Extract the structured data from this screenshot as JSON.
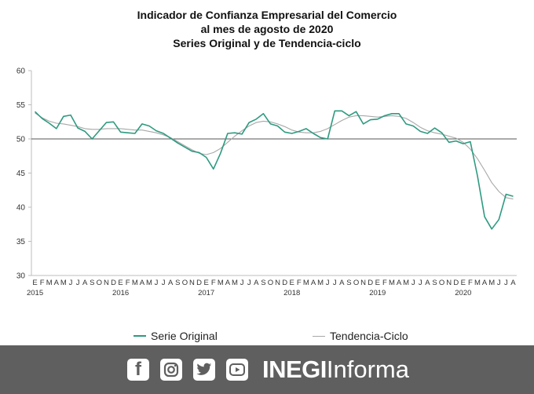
{
  "title": {
    "line1": "Indicador de Confianza Empresarial del Comercio",
    "line2": "al mes de agosto de 2020",
    "line3": "Series Original y de Tendencia-ciclo"
  },
  "chart_data": {
    "type": "line",
    "ylim": [
      30,
      60
    ],
    "yticks": [
      "30",
      "35",
      "40",
      "45",
      "50",
      "55",
      "60"
    ],
    "month_labels": [
      "E",
      "F",
      "M",
      "A",
      "M",
      "J",
      "J",
      "A",
      "S",
      "O",
      "N",
      "D"
    ],
    "years": [
      "2015",
      "2016",
      "2017",
      "2018",
      "2019",
      "2020"
    ],
    "reference_line": 50,
    "series": [
      {
        "name": "Serie Original",
        "color": "#2e9a80",
        "values": [
          54.0,
          53.0,
          52.3,
          51.5,
          53.3,
          53.5,
          51.6,
          51.1,
          50.0,
          51.2,
          52.4,
          52.5,
          51.0,
          50.9,
          50.8,
          52.2,
          51.9,
          51.2,
          50.8,
          50.1,
          49.4,
          48.8,
          48.2,
          48.0,
          47.3,
          45.6,
          47.9,
          50.8,
          50.9,
          50.7,
          52.4,
          52.9,
          53.7,
          52.2,
          51.9,
          51.0,
          50.8,
          51.1,
          51.5,
          50.8,
          50.2,
          50.0,
          54.1,
          54.1,
          53.4,
          54.0,
          52.2,
          52.8,
          52.9,
          53.4,
          53.7,
          53.7,
          52.2,
          51.9,
          51.1,
          50.8,
          51.6,
          50.9,
          49.5,
          49.7,
          49.3,
          49.6,
          44.6,
          38.6,
          36.8,
          38.2,
          41.9,
          41.6
        ]
      },
      {
        "name": "Tendencia-Ciclo",
        "color": "#a8a8a8",
        "values": [
          53.8,
          53.1,
          52.6,
          52.3,
          52.2,
          52.0,
          51.8,
          51.5,
          51.4,
          51.4,
          51.5,
          51.5,
          51.5,
          51.4,
          51.3,
          51.3,
          51.1,
          50.9,
          50.6,
          50.2,
          49.6,
          49.0,
          48.4,
          47.9,
          47.7,
          48.0,
          48.6,
          49.5,
          50.4,
          51.2,
          51.9,
          52.4,
          52.6,
          52.5,
          52.2,
          51.8,
          51.3,
          51.0,
          50.9,
          50.9,
          51.1,
          51.5,
          52.1,
          52.7,
          53.2,
          53.4,
          53.4,
          53.3,
          53.2,
          53.3,
          53.4,
          53.3,
          53.0,
          52.4,
          51.7,
          51.2,
          50.9,
          50.7,
          50.4,
          50.1,
          49.5,
          48.5,
          47.1,
          45.4,
          43.6,
          42.3,
          41.4,
          41.2
        ]
      }
    ]
  },
  "legend": {
    "original": "Serie Original",
    "trend": "Tendencia-Ciclo"
  },
  "footer": {
    "brand_strong": "INEGI",
    "brand_light": "Informa",
    "icons": [
      "facebook-icon",
      "instagram-icon",
      "twitter-icon",
      "youtube-icon"
    ]
  }
}
